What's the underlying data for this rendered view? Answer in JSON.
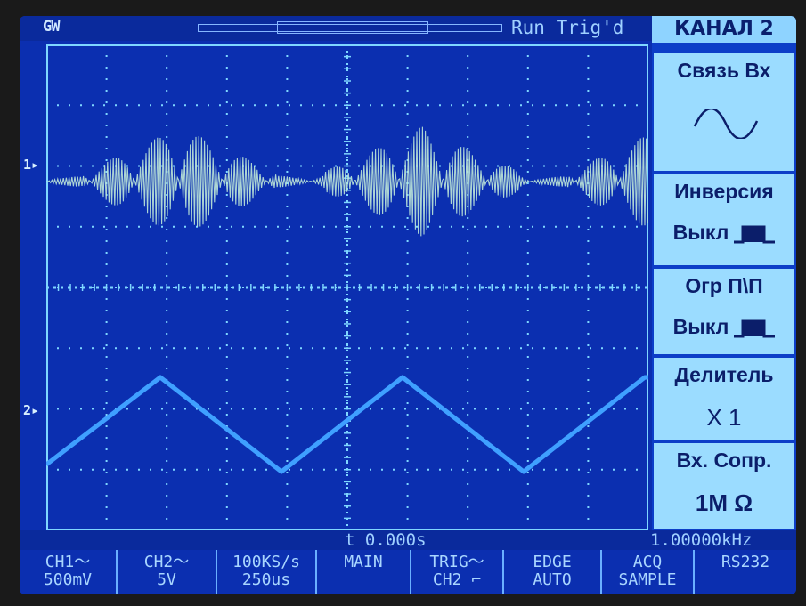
{
  "topbar": {
    "logo": "GW",
    "status": "Run Trig'd"
  },
  "markers": {
    "ch1": "1",
    "ch2": "2"
  },
  "menu": {
    "title": "КАНАЛ 2",
    "items": [
      {
        "label": "Связь Вх",
        "value_icon": "ac-sine-icon"
      },
      {
        "label": "Инверсия",
        "value": "Выкл",
        "value_icon": "pulse-icon"
      },
      {
        "label": "Огр П\\П",
        "value": "Выкл",
        "value_icon": "pulse-icon"
      },
      {
        "label": "Делитель",
        "value": "X 1"
      },
      {
        "label": "Вх. Сопр.",
        "value": "1M Ω"
      }
    ]
  },
  "readout": {
    "time": "t 0.000s",
    "freq": "1.00000kHz"
  },
  "bottom": [
    {
      "l1": "CH1～",
      "l2": "500mV"
    },
    {
      "l1": "CH2～",
      "l2": "5V"
    },
    {
      "l1": "100KS/s",
      "l2": "250us"
    },
    {
      "l1": "MAIN",
      "l2": ""
    },
    {
      "l1": "TRIG～",
      "l2": "CH2 ⌐"
    },
    {
      "l1": "EDGE",
      "l2": "AUTO"
    },
    {
      "l1": "ACQ",
      "l2": "SAMPLE"
    },
    {
      "l1": "RS232",
      "l2": ""
    }
  ],
  "colors": {
    "screen": "#0b2fb0",
    "grid": "#7fd7ff",
    "ch1_trace": "#bfe8d8",
    "ch2_trace": "#3fa0ff",
    "menu_box": "#9bdcff"
  }
}
